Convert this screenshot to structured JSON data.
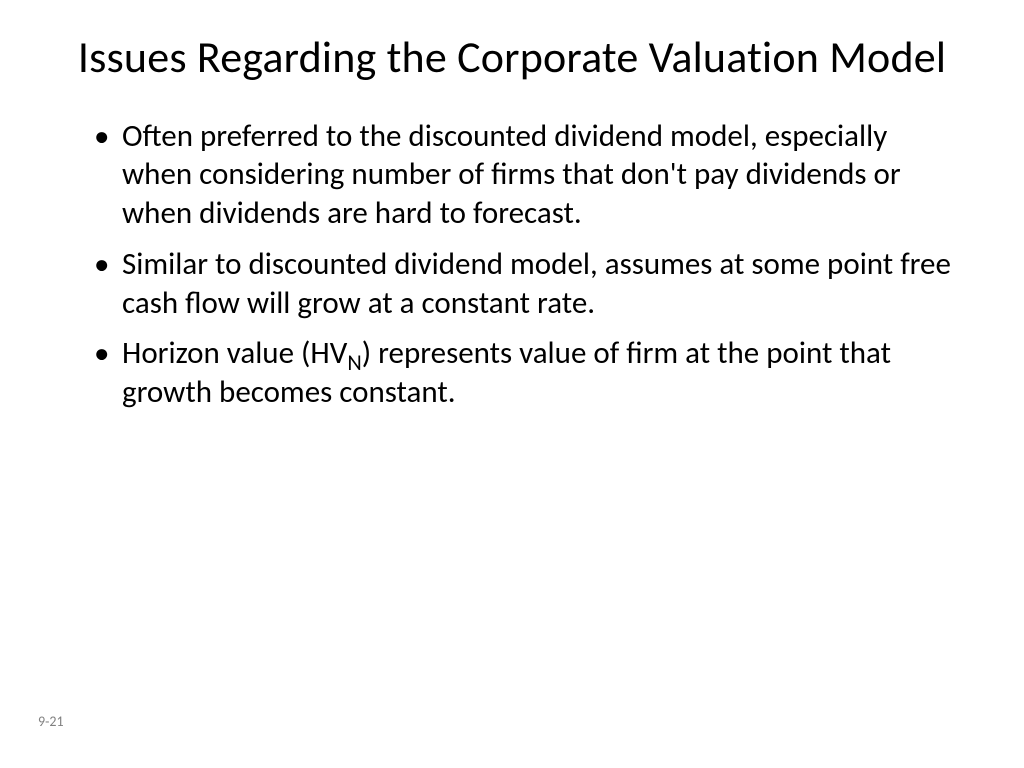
{
  "slide": {
    "title": "Issues Regarding the Corporate Valuation Model",
    "bullets": [
      {
        "text": "Often preferred to the discounted dividend model, especially when considering number of firms that don't pay dividends or when dividends are hard to forecast."
      },
      {
        "text": "Similar to discounted dividend model, assumes at some point free cash flow will grow at a constant rate."
      },
      {
        "prefix": "Horizon value (HV",
        "sub": "N",
        "suffix": ") represents value of firm at the point that growth becomes constant."
      }
    ],
    "footer": "9-21"
  },
  "style": {
    "background_color": "#ffffff",
    "text_color": "#000000",
    "footer_color": "#808080",
    "title_fontsize": 44,
    "body_fontsize": 31,
    "footer_fontsize": 14,
    "font_family": "Calibri"
  }
}
